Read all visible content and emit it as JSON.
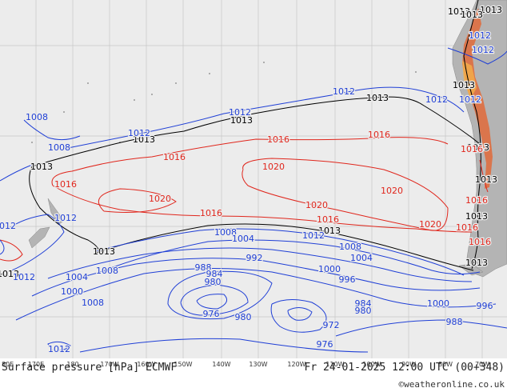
{
  "map": {
    "title": "Surface pressure [hPa] ECMWF",
    "valid_time": "Fr 24-01-2025 12:00 UTC (00+348)",
    "credit": "©weatheronline.co.uk",
    "longitude_labels": [
      "80E",
      "170E",
      "180",
      "170W",
      "160W",
      "150W",
      "140W",
      "130W",
      "120W",
      "110W",
      "100W",
      "90W",
      "80W",
      "70W"
    ],
    "colors": {
      "ocean": "#ececec",
      "land": "#b4b4b4",
      "grid": "#c8c8c8",
      "isobar_low": "#1f3fd6",
      "isobar_standard": "#000000",
      "isobar_high": "#e0261c"
    },
    "isobar_labels": [
      {
        "text": "1013",
        "group": "standard"
      },
      {
        "text": "1013",
        "group": "standard"
      },
      {
        "text": "1013",
        "group": "standard"
      },
      {
        "text": "1013",
        "group": "standard"
      },
      {
        "text": "1013",
        "group": "standard"
      },
      {
        "text": "1013",
        "group": "standard"
      },
      {
        "text": "1013",
        "group": "standard"
      },
      {
        "text": "1013",
        "group": "standard"
      },
      {
        "text": "1013",
        "group": "standard"
      },
      {
        "text": "1013",
        "group": "standard"
      },
      {
        "text": "1013",
        "group": "standard"
      },
      {
        "text": "1013",
        "group": "standard"
      },
      {
        "text": "1013",
        "group": "standard"
      },
      {
        "text": "1013",
        "group": "standard"
      },
      {
        "text": "1013",
        "group": "standard"
      },
      {
        "text": "1016",
        "group": "high"
      },
      {
        "text": "1016",
        "group": "high"
      },
      {
        "text": "1016",
        "group": "high"
      },
      {
        "text": "1016",
        "group": "high"
      },
      {
        "text": "1016",
        "group": "high"
      },
      {
        "text": "1016",
        "group": "high"
      },
      {
        "text": "1016",
        "group": "high"
      },
      {
        "text": "1016",
        "group": "high"
      },
      {
        "text": "1016",
        "group": "high"
      },
      {
        "text": "1016",
        "group": "high"
      },
      {
        "text": "1020",
        "group": "high"
      },
      {
        "text": "1020",
        "group": "high"
      },
      {
        "text": "1020",
        "group": "high"
      },
      {
        "text": "1020",
        "group": "high"
      },
      {
        "text": "1020",
        "group": "high"
      },
      {
        "text": "1012",
        "group": "low"
      },
      {
        "text": "1012",
        "group": "low"
      },
      {
        "text": "1012",
        "group": "low"
      },
      {
        "text": "1012",
        "group": "low"
      },
      {
        "text": "1012",
        "group": "low"
      },
      {
        "text": "1012",
        "group": "low"
      },
      {
        "text": "1012",
        "group": "low"
      },
      {
        "text": "1012",
        "group": "low"
      },
      {
        "text": "1012",
        "group": "low"
      },
      {
        "text": "1012",
        "group": "low"
      },
      {
        "text": "1012",
        "group": "low"
      },
      {
        "text": "1012",
        "group": "low"
      },
      {
        "text": "1008",
        "group": "low"
      },
      {
        "text": "1008",
        "group": "low"
      },
      {
        "text": "1008",
        "group": "low"
      },
      {
        "text": "1008",
        "group": "low"
      },
      {
        "text": "1008",
        "group": "low"
      },
      {
        "text": "1008",
        "group": "low"
      },
      {
        "text": "1004",
        "group": "low"
      },
      {
        "text": "1004",
        "group": "low"
      },
      {
        "text": "1004",
        "group": "low"
      },
      {
        "text": "1000",
        "group": "low"
      },
      {
        "text": "1000",
        "group": "low"
      },
      {
        "text": "1000",
        "group": "low"
      },
      {
        "text": "996",
        "group": "low"
      },
      {
        "text": "996",
        "group": "low"
      },
      {
        "text": "992",
        "group": "low"
      },
      {
        "text": "988",
        "group": "low"
      },
      {
        "text": "988",
        "group": "low"
      },
      {
        "text": "984",
        "group": "low"
      },
      {
        "text": "984",
        "group": "low"
      },
      {
        "text": "980",
        "group": "low"
      },
      {
        "text": "980",
        "group": "low"
      },
      {
        "text": "980",
        "group": "low"
      },
      {
        "text": "976",
        "group": "low"
      },
      {
        "text": "976",
        "group": "low"
      },
      {
        "text": "972",
        "group": "low"
      }
    ]
  }
}
